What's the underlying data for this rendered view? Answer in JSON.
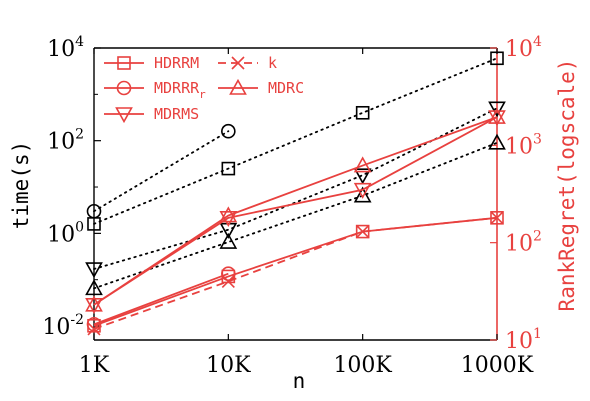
{
  "chart_data": {
    "type": "line",
    "x_categories": [
      "1K",
      "10K",
      "100K",
      "1000K"
    ],
    "xlabel": "n",
    "ylabel_left": "time(s)",
    "ylabel_right": "RankRegret(logscale)",
    "left_axis": {
      "scale": "log",
      "range": [
        0.005,
        10000
      ],
      "ticks": [
        {
          "value": 0.01,
          "base": "10",
          "exp": "-2"
        },
        {
          "value": 1,
          "base": "10",
          "exp": "0"
        },
        {
          "value": 100,
          "base": "10",
          "exp": "2"
        },
        {
          "value": 10000,
          "base": "10",
          "exp": "4"
        }
      ]
    },
    "right_axis": {
      "scale": "log",
      "range": [
        10,
        10000
      ],
      "ticks": [
        {
          "value": 10,
          "base": "10",
          "exp": "1"
        },
        {
          "value": 100,
          "base": "10",
          "exp": "2"
        },
        {
          "value": 1000,
          "base": "10",
          "exp": "3"
        },
        {
          "value": 10000,
          "base": "10",
          "exp": "4"
        }
      ]
    },
    "time_series": [
      {
        "name": "HDRRM",
        "marker": "square",
        "values": [
          1.6,
          25,
          400,
          6000
        ]
      },
      {
        "name": "MDRRR_r",
        "marker": "circle",
        "values": [
          3.0,
          160,
          null,
          null
        ]
      },
      {
        "name": "MDRMS",
        "marker": "triangle-down",
        "values": [
          0.17,
          1.2,
          18,
          500
        ]
      },
      {
        "name": "MDRC",
        "marker": "triangle-up",
        "values": [
          0.065,
          0.65,
          6.5,
          90
        ]
      }
    ],
    "rank_regret_series": [
      {
        "name": "HDRRM",
        "marker": "square",
        "dashed": false,
        "values": [
          14,
          45,
          130,
          180
        ]
      },
      {
        "name": "MDRRR_r",
        "marker": "circle",
        "dashed": false,
        "values": [
          14.5,
          48,
          null,
          null
        ]
      },
      {
        "name": "k",
        "marker": "x",
        "dashed": true,
        "values": [
          13,
          40,
          130,
          180
        ]
      },
      {
        "name": "MDRC",
        "marker": "triangle-up",
        "dashed": false,
        "values": [
          23,
          190,
          620,
          1950
        ]
      },
      {
        "name": "MDRMS",
        "marker": "triangle-down",
        "dashed": false,
        "values": [
          23,
          180,
          350,
          1950
        ]
      }
    ],
    "legend": {
      "placement": "top-left",
      "entries": [
        {
          "label": "HDRRM",
          "marker": "square",
          "dashed": false
        },
        {
          "label": "k",
          "marker": "x",
          "dashed": true
        },
        {
          "label": "MDRRR",
          "subscript": "r",
          "marker": "circle",
          "dashed": false
        },
        {
          "label": "MDRC",
          "marker": "triangle-up",
          "dashed": false
        },
        {
          "label": "MDRMS",
          "marker": "triangle-down",
          "dashed": false
        }
      ]
    },
    "colors": {
      "time": "#000000",
      "rank_regret": "#e8413f"
    }
  }
}
